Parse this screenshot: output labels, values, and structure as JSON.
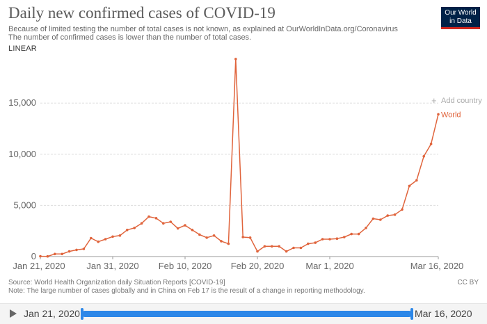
{
  "header": {
    "title": "Daily new confirmed cases of COVID-19",
    "subtitle_line1": "Because of limited testing the number of total cases is not known, as explained at OurWorldInData.org/Coronavirus",
    "subtitle_line2": "The number of confirmed cases is lower than the number of total cases.",
    "logo_line1": "Our World",
    "logo_line2": "in Data"
  },
  "controls": {
    "scale_label": "LINEAR",
    "add_country": "Add country"
  },
  "footer": {
    "source": "Source: World Health Organization daily Situation Reports [COVID-19]",
    "note": "Note: The large number of cases globally and in China on Feb 17 is the result of a change in reporting methodology.",
    "license": "CC BY"
  },
  "timeline": {
    "start": "Jan 21, 2020",
    "end": "Mar 16, 2020"
  },
  "chart_data": {
    "type": "line",
    "title": "Daily new confirmed cases of COVID-19",
    "xlabel": "",
    "ylabel": "",
    "x_start": "2020-01-21",
    "x_end": "2020-03-16",
    "x_ticks": [
      "Jan 21, 2020",
      "Jan 31, 2020",
      "Feb 10, 2020",
      "Feb 20, 2020",
      "Mar 1, 2020",
      "Mar 16, 2020"
    ],
    "x_tick_dates": [
      "2020-01-21",
      "2020-01-31",
      "2020-02-10",
      "2020-02-20",
      "2020-03-01",
      "2020-03-16"
    ],
    "y_ticks": [
      0,
      5000,
      10000,
      15000
    ],
    "y_tick_labels": [
      "0",
      "5,000",
      "10,000",
      "15,000"
    ],
    "ylim": [
      0,
      19500
    ],
    "grid": true,
    "color": "#e0643c",
    "series": [
      {
        "name": "World",
        "x": [
          "2020-01-21",
          "2020-01-22",
          "2020-01-23",
          "2020-01-24",
          "2020-01-25",
          "2020-01-26",
          "2020-01-27",
          "2020-01-28",
          "2020-01-29",
          "2020-01-30",
          "2020-01-31",
          "2020-02-01",
          "2020-02-02",
          "2020-02-03",
          "2020-02-04",
          "2020-02-05",
          "2020-02-06",
          "2020-02-07",
          "2020-02-08",
          "2020-02-09",
          "2020-02-10",
          "2020-02-11",
          "2020-02-12",
          "2020-02-13",
          "2020-02-14",
          "2020-02-15",
          "2020-02-16",
          "2020-02-17",
          "2020-02-18",
          "2020-02-19",
          "2020-02-20",
          "2020-02-21",
          "2020-02-22",
          "2020-02-23",
          "2020-02-24",
          "2020-02-25",
          "2020-02-26",
          "2020-02-27",
          "2020-02-28",
          "2020-02-29",
          "2020-03-01",
          "2020-03-02",
          "2020-03-03",
          "2020-03-04",
          "2020-03-05",
          "2020-03-06",
          "2020-03-07",
          "2020-03-08",
          "2020-03-09",
          "2020-03-10",
          "2020-03-11",
          "2020-03-12",
          "2020-03-13",
          "2020-03-14",
          "2020-03-15",
          "2020-03-16"
        ],
        "values": [
          30,
          20,
          250,
          250,
          500,
          650,
          750,
          1800,
          1450,
          1700,
          1950,
          2050,
          2600,
          2800,
          3250,
          3900,
          3750,
          3250,
          3400,
          2750,
          3050,
          2600,
          2150,
          1850,
          2050,
          1500,
          1250,
          19300,
          1900,
          1850,
          500,
          1000,
          1000,
          1000,
          500,
          850,
          850,
          1250,
          1350,
          1700,
          1700,
          1750,
          1900,
          2200,
          2200,
          2800,
          3700,
          3600,
          4000,
          4100,
          4600,
          6900,
          7450,
          9800,
          11000,
          13900
        ]
      }
    ]
  }
}
